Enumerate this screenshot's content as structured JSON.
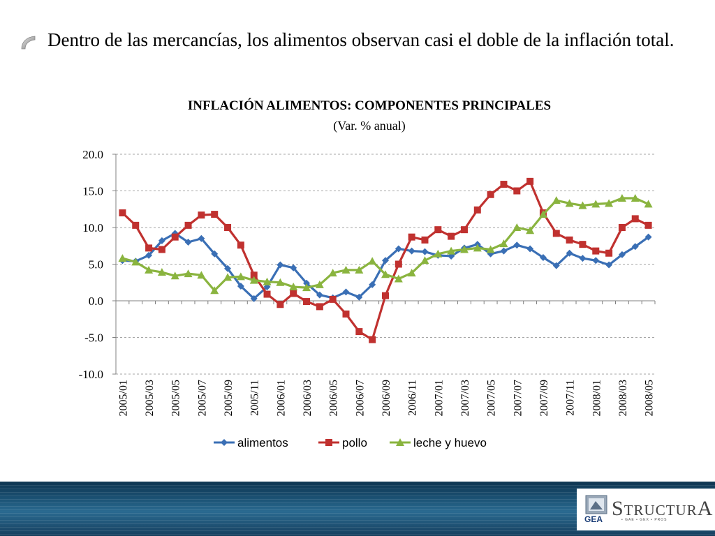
{
  "bullet": {
    "text": "Dentro de las mercancías, los alimentos observan casi el doble de la inflación total."
  },
  "colors": {
    "alimentos": "#3a6fb5",
    "pollo": "#c0312f",
    "leche_y_huevo": "#8ab43f",
    "grid": "#a6a6a6"
  },
  "logo": {
    "gea": "GEA",
    "structura_first": "S",
    "structura_mid": "TRUCTUR",
    "structura_last": "A",
    "sub": "• GAE   • GEX   • PROS"
  },
  "chart_data": {
    "type": "line",
    "title": "INFLACIÓN ALIMENTOS: COMPONENTES PRINCIPALES",
    "subtitle": "(Var. % anual)",
    "ylim": [
      -10,
      20
    ],
    "yticks": [
      "20.0",
      "15.0",
      "10.0",
      "5.0",
      "0.0",
      "-5.0",
      "-10.0"
    ],
    "grid": true,
    "legend": "bottom",
    "x": [
      "2005/01",
      "2005/02",
      "2005/03",
      "2005/04",
      "2005/05",
      "2005/06",
      "2005/07",
      "2005/08",
      "2005/09",
      "2005/10",
      "2005/11",
      "2005/12",
      "2006/01",
      "2006/02",
      "2006/03",
      "2006/04",
      "2006/05",
      "2006/06",
      "2006/07",
      "2006/08",
      "2006/09",
      "2006/10",
      "2006/11",
      "2006/12",
      "2007/01",
      "2007/02",
      "2007/03",
      "2007/04",
      "2007/05",
      "2007/06",
      "2007/07",
      "2007/08",
      "2007/09",
      "2007/10",
      "2007/11",
      "2007/12",
      "2008/01",
      "2008/02",
      "2008/03",
      "2008/04",
      "2008/05"
    ],
    "x_tick_labels": [
      "2005/01",
      "2005/03",
      "2005/05",
      "2005/07",
      "2005/09",
      "2005/11",
      "2006/01",
      "2006/03",
      "2006/05",
      "2006/07",
      "2006/09",
      "2006/11",
      "2007/01",
      "2007/03",
      "2007/05",
      "2007/07",
      "2007/09",
      "2007/11",
      "2008/01",
      "2008/03",
      "2008/05"
    ],
    "series": [
      {
        "name": "alimentos",
        "values": [
          5.5,
          5.4,
          6.2,
          8.2,
          9.2,
          8.0,
          8.5,
          6.4,
          4.4,
          2.0,
          0.3,
          1.9,
          4.9,
          4.5,
          2.4,
          0.8,
          0.4,
          1.2,
          0.5,
          2.2,
          5.5,
          7.1,
          6.8,
          6.7,
          6.2,
          6.1,
          7.2,
          7.7,
          6.4,
          6.8,
          7.6,
          7.1,
          5.9,
          4.8,
          6.5,
          5.8,
          5.5,
          4.9,
          6.3,
          7.4,
          8.7
        ]
      },
      {
        "name": "pollo",
        "values": [
          12.0,
          10.3,
          7.2,
          7.0,
          8.7,
          10.3,
          11.7,
          11.8,
          10.0,
          7.6,
          3.5,
          0.9,
          -0.5,
          1.0,
          -0.1,
          -0.8,
          0.2,
          -1.8,
          -4.2,
          -5.3,
          0.7,
          5.0,
          8.7,
          8.3,
          9.7,
          8.8,
          9.7,
          12.4,
          14.5,
          15.9,
          15.0,
          16.3,
          12.0,
          9.2,
          8.3,
          7.7,
          6.8,
          6.5,
          10.0,
          11.2,
          10.3
        ]
      },
      {
        "name": "leche y huevo",
        "values": [
          5.8,
          5.3,
          4.2,
          3.9,
          3.4,
          3.7,
          3.5,
          1.4,
          3.2,
          3.3,
          2.8,
          2.6,
          2.5,
          1.9,
          1.8,
          2.2,
          3.8,
          4.2,
          4.2,
          5.4,
          3.6,
          3.0,
          3.8,
          5.5,
          6.4,
          6.8,
          7.0,
          7.2,
          7.0,
          7.8,
          10.0,
          9.6,
          11.8,
          13.7,
          13.3,
          13.0,
          13.2,
          13.3,
          14.0,
          14.0,
          13.2
        ]
      }
    ]
  }
}
